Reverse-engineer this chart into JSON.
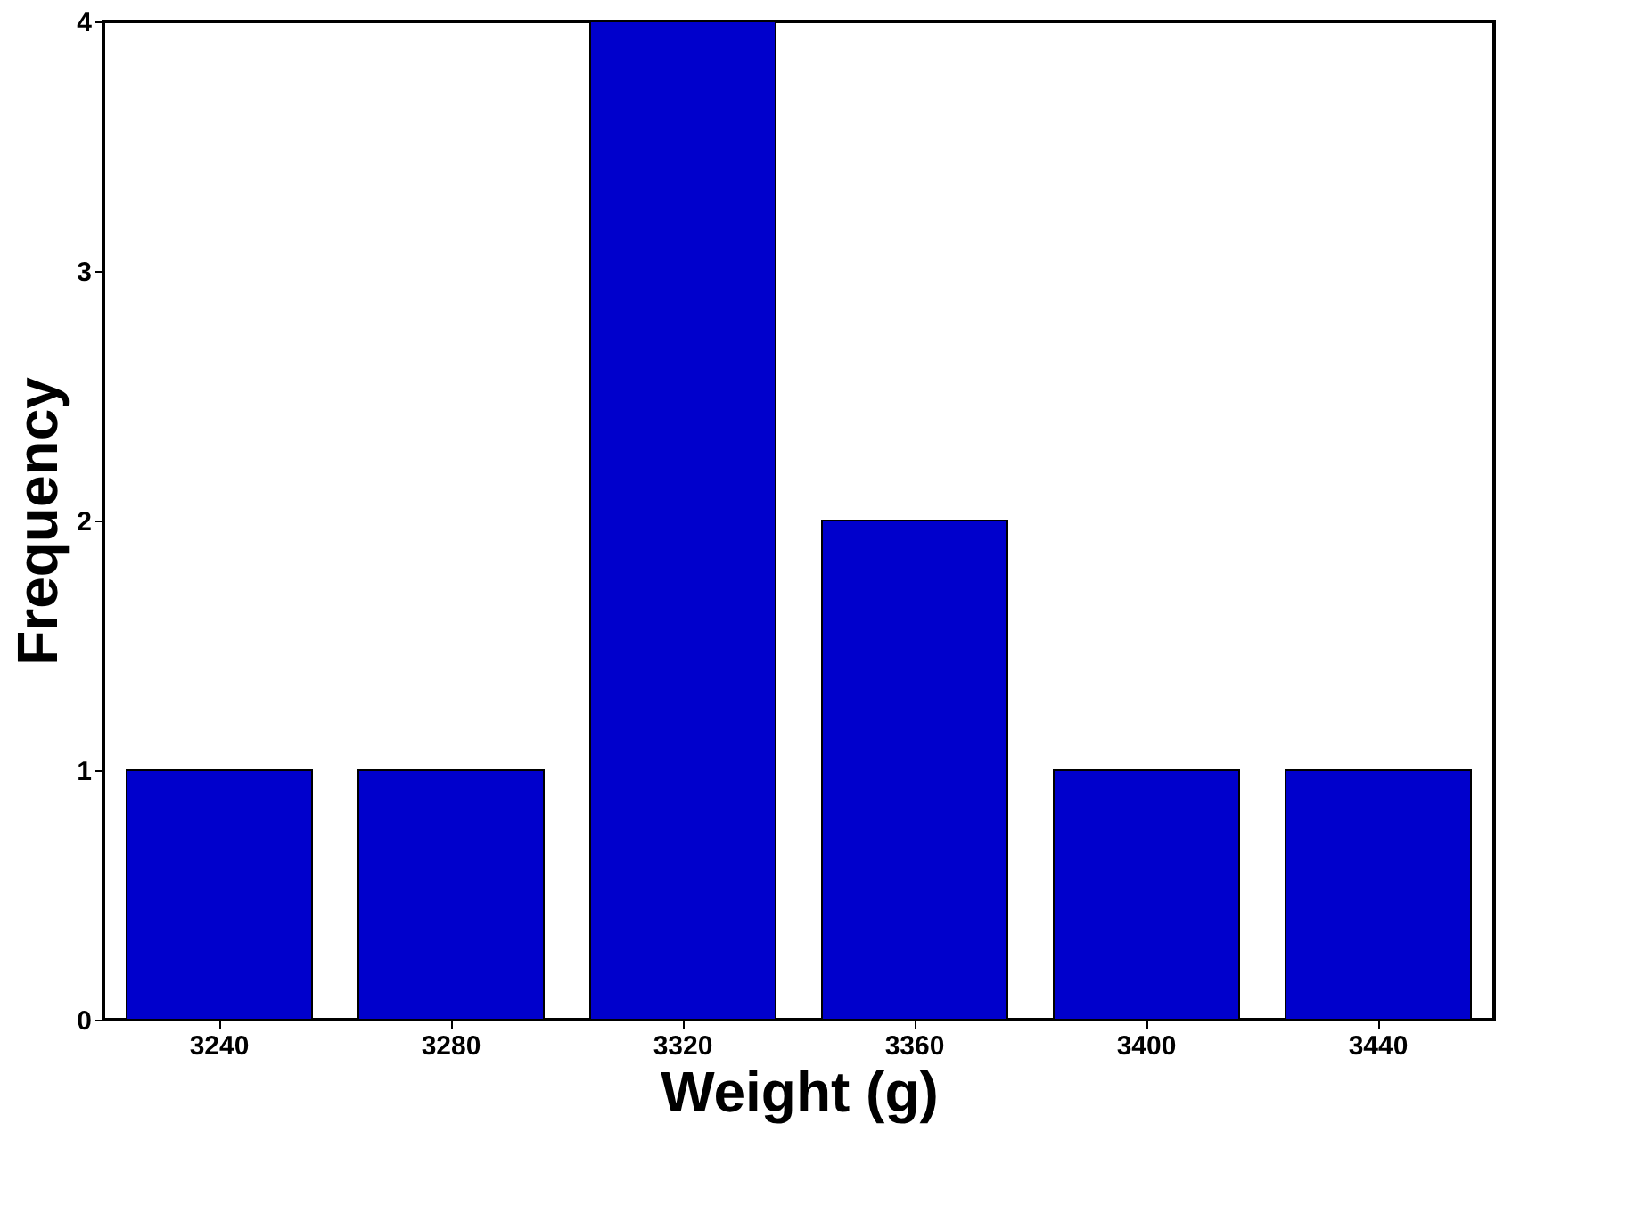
{
  "chart_data": {
    "type": "bar",
    "xlabel": "Weight (g)",
    "ylabel": "Frequency",
    "categories": [
      "3240",
      "3280",
      "3320",
      "3360",
      "3400",
      "3440"
    ],
    "values": [
      1,
      1,
      4,
      2,
      1,
      1
    ],
    "color": "#0000cc",
    "ylim": [
      0,
      4
    ],
    "yticks": [
      0,
      1,
      2,
      3,
      4
    ],
    "grid": false
  }
}
